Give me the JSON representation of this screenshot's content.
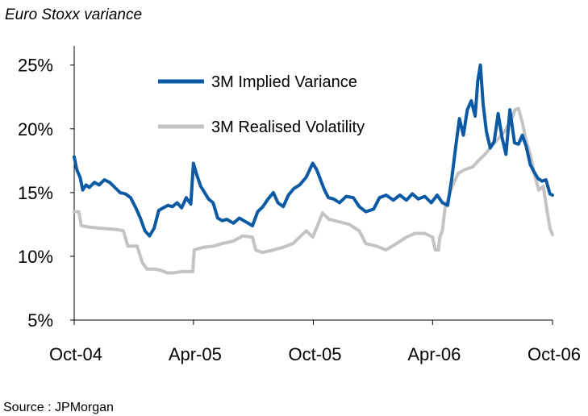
{
  "title": "Euro Stoxx variance",
  "source": "Source : JPMorgan",
  "chart_data": {
    "type": "line",
    "x_tick_labels": [
      "Oct-04",
      "Apr-05",
      "Oct-05",
      "Apr-06",
      "Oct-06"
    ],
    "x_ticks": [
      "2004-10-01",
      "2005-04-01",
      "2005-10-01",
      "2006-04-01",
      "2006-10-01"
    ],
    "xlim": [
      "2004-10-01",
      "2006-10-01"
    ],
    "y_tick_labels": [
      "5%",
      "10%",
      "15%",
      "20%",
      "25%"
    ],
    "y_ticks": [
      5,
      10,
      15,
      20,
      25
    ],
    "ylim": [
      5,
      26.5
    ],
    "ylabel": "",
    "xlabel": "",
    "grid": false,
    "legend_position": "top-center",
    "series": [
      {
        "name": "3M Implied Variance",
        "color": "#0b5aa3",
        "points": [
          [
            "2004-10-01",
            17.8
          ],
          [
            "2004-10-05",
            16.8
          ],
          [
            "2004-10-10",
            16.2
          ],
          [
            "2004-10-14",
            15.2
          ],
          [
            "2004-10-19",
            15.6
          ],
          [
            "2004-10-24",
            15.4
          ],
          [
            "2004-11-01",
            15.8
          ],
          [
            "2004-11-08",
            15.6
          ],
          [
            "2004-11-16",
            16.0
          ],
          [
            "2004-11-24",
            15.8
          ],
          [
            "2004-12-02",
            15.4
          ],
          [
            "2004-12-10",
            15.0
          ],
          [
            "2004-12-18",
            14.9
          ],
          [
            "2004-12-26",
            14.6
          ],
          [
            "2005-01-03",
            13.8
          ],
          [
            "2005-01-10",
            13.0
          ],
          [
            "2005-01-17",
            12.0
          ],
          [
            "2005-01-24",
            11.6
          ],
          [
            "2005-01-31",
            12.2
          ],
          [
            "2005-02-07",
            13.6
          ],
          [
            "2005-02-14",
            13.8
          ],
          [
            "2005-02-21",
            14.0
          ],
          [
            "2005-02-28",
            13.9
          ],
          [
            "2005-03-07",
            14.2
          ],
          [
            "2005-03-14",
            13.8
          ],
          [
            "2005-03-21",
            14.6
          ],
          [
            "2005-03-28",
            14.1
          ],
          [
            "2005-04-01",
            17.3
          ],
          [
            "2005-04-06",
            16.4
          ],
          [
            "2005-04-12",
            15.5
          ],
          [
            "2005-04-18",
            15.0
          ],
          [
            "2005-04-24",
            14.5
          ],
          [
            "2005-05-01",
            14.2
          ],
          [
            "2005-05-08",
            13.0
          ],
          [
            "2005-05-15",
            12.8
          ],
          [
            "2005-05-22",
            12.9
          ],
          [
            "2005-06-01",
            12.6
          ],
          [
            "2005-06-10",
            13.0
          ],
          [
            "2005-06-20",
            12.7
          ],
          [
            "2005-06-30",
            12.4
          ],
          [
            "2005-07-08",
            13.5
          ],
          [
            "2005-07-16",
            13.9
          ],
          [
            "2005-07-24",
            14.5
          ],
          [
            "2005-08-01",
            15.0
          ],
          [
            "2005-08-08",
            14.2
          ],
          [
            "2005-08-16",
            13.9
          ],
          [
            "2005-08-24",
            14.8
          ],
          [
            "2005-09-01",
            15.3
          ],
          [
            "2005-09-10",
            15.6
          ],
          [
            "2005-09-20",
            16.2
          ],
          [
            "2005-09-30",
            17.3
          ],
          [
            "2005-10-06",
            16.8
          ],
          [
            "2005-10-12",
            16.0
          ],
          [
            "2005-10-18",
            15.2
          ],
          [
            "2005-10-24",
            14.6
          ],
          [
            "2005-11-01",
            14.5
          ],
          [
            "2005-11-10",
            14.2
          ],
          [
            "2005-11-20",
            14.7
          ],
          [
            "2005-12-01",
            14.6
          ],
          [
            "2005-12-10",
            13.9
          ],
          [
            "2005-12-20",
            13.5
          ],
          [
            "2006-01-01",
            13.7
          ],
          [
            "2006-01-10",
            14.6
          ],
          [
            "2006-01-20",
            14.8
          ],
          [
            "2006-01-31",
            14.4
          ],
          [
            "2006-02-10",
            14.8
          ],
          [
            "2006-02-20",
            14.4
          ],
          [
            "2006-03-01",
            14.9
          ],
          [
            "2006-03-10",
            14.5
          ],
          [
            "2006-03-20",
            14.7
          ],
          [
            "2006-03-30",
            14.2
          ],
          [
            "2006-04-08",
            14.8
          ],
          [
            "2006-04-16",
            14.2
          ],
          [
            "2006-04-24",
            14.0
          ],
          [
            "2006-04-30",
            16.0
          ],
          [
            "2006-05-06",
            18.5
          ],
          [
            "2006-05-12",
            20.8
          ],
          [
            "2006-05-18",
            19.5
          ],
          [
            "2006-05-24",
            21.5
          ],
          [
            "2006-05-30",
            22.2
          ],
          [
            "2006-06-05",
            21.0
          ],
          [
            "2006-06-09",
            23.8
          ],
          [
            "2006-06-13",
            25.0
          ],
          [
            "2006-06-17",
            22.0
          ],
          [
            "2006-06-22",
            19.8
          ],
          [
            "2006-06-28",
            18.5
          ],
          [
            "2006-07-04",
            19.0
          ],
          [
            "2006-07-10",
            21.2
          ],
          [
            "2006-07-16",
            19.3
          ],
          [
            "2006-07-22",
            18.0
          ],
          [
            "2006-07-28",
            21.5
          ],
          [
            "2006-08-04",
            18.9
          ],
          [
            "2006-08-10",
            18.8
          ],
          [
            "2006-08-16",
            19.5
          ],
          [
            "2006-08-22",
            18.6
          ],
          [
            "2006-08-28",
            17.2
          ],
          [
            "2006-09-03",
            16.6
          ],
          [
            "2006-09-09",
            16.1
          ],
          [
            "2006-09-15",
            15.9
          ],
          [
            "2006-09-21",
            16.0
          ],
          [
            "2006-09-27",
            14.9
          ],
          [
            "2006-10-01",
            14.8
          ]
        ]
      },
      {
        "name": "3M Realised Volatility",
        "color": "#c3c3c3",
        "points": [
          [
            "2004-10-01",
            13.5
          ],
          [
            "2004-10-08",
            13.5
          ],
          [
            "2004-10-12",
            12.4
          ],
          [
            "2004-10-24",
            12.3
          ],
          [
            "2004-11-10",
            12.2
          ],
          [
            "2004-12-05",
            12.1
          ],
          [
            "2004-12-15",
            12.0
          ],
          [
            "2004-12-22",
            10.8
          ],
          [
            "2005-01-05",
            10.8
          ],
          [
            "2005-01-13",
            9.5
          ],
          [
            "2005-01-20",
            9.0
          ],
          [
            "2005-02-01",
            9.0
          ],
          [
            "2005-02-10",
            8.9
          ],
          [
            "2005-02-20",
            8.7
          ],
          [
            "2005-03-01",
            8.7
          ],
          [
            "2005-03-15",
            8.8
          ],
          [
            "2005-03-31",
            8.8
          ],
          [
            "2005-04-02",
            10.5
          ],
          [
            "2005-04-15",
            10.7
          ],
          [
            "2005-05-01",
            10.8
          ],
          [
            "2005-05-15",
            11.0
          ],
          [
            "2005-06-01",
            11.2
          ],
          [
            "2005-06-15",
            11.6
          ],
          [
            "2005-06-30",
            11.5
          ],
          [
            "2005-07-05",
            10.5
          ],
          [
            "2005-07-15",
            10.3
          ],
          [
            "2005-08-01",
            10.5
          ],
          [
            "2005-08-15",
            10.7
          ],
          [
            "2005-08-31",
            11.0
          ],
          [
            "2005-09-10",
            11.5
          ],
          [
            "2005-09-20",
            12.0
          ],
          [
            "2005-09-30",
            11.5
          ],
          [
            "2005-10-08",
            12.5
          ],
          [
            "2005-10-15",
            13.4
          ],
          [
            "2005-10-25",
            12.9
          ],
          [
            "2005-11-10",
            12.7
          ],
          [
            "2005-11-25",
            12.5
          ],
          [
            "2005-12-10",
            12.0
          ],
          [
            "2005-12-20",
            11.0
          ],
          [
            "2006-01-05",
            10.8
          ],
          [
            "2006-01-20",
            10.5
          ],
          [
            "2006-02-05",
            11.0
          ],
          [
            "2006-02-20",
            11.5
          ],
          [
            "2006-03-05",
            11.8
          ],
          [
            "2006-03-20",
            11.8
          ],
          [
            "2006-04-01",
            11.5
          ],
          [
            "2006-04-05",
            10.5
          ],
          [
            "2006-04-10",
            10.5
          ],
          [
            "2006-04-12",
            11.5
          ],
          [
            "2006-04-16",
            12.0
          ],
          [
            "2006-04-20",
            13.8
          ],
          [
            "2006-05-01",
            15.5
          ],
          [
            "2006-05-10",
            16.5
          ],
          [
            "2006-05-20",
            16.8
          ],
          [
            "2006-06-01",
            17.0
          ],
          [
            "2006-06-10",
            17.5
          ],
          [
            "2006-06-20",
            18.0
          ],
          [
            "2006-07-01",
            18.7
          ],
          [
            "2006-07-10",
            19.2
          ],
          [
            "2006-07-20",
            19.8
          ],
          [
            "2006-07-31",
            20.8
          ],
          [
            "2006-08-05",
            21.5
          ],
          [
            "2006-08-10",
            21.6
          ],
          [
            "2006-08-16",
            20.5
          ],
          [
            "2006-08-22",
            19.0
          ],
          [
            "2006-08-28",
            18.0
          ],
          [
            "2006-09-03",
            16.5
          ],
          [
            "2006-09-10",
            15.2
          ],
          [
            "2006-09-17",
            15.5
          ],
          [
            "2006-09-22",
            13.8
          ],
          [
            "2006-09-27",
            12.2
          ],
          [
            "2006-10-01",
            11.7
          ]
        ]
      }
    ]
  }
}
